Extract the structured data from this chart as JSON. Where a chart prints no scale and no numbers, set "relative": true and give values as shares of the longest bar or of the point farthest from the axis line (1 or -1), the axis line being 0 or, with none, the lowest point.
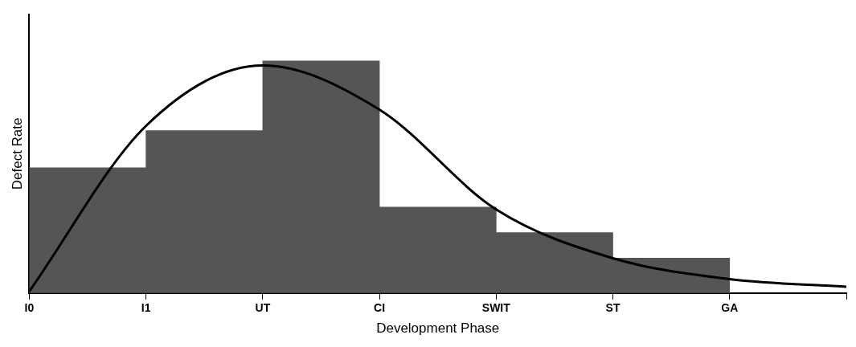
{
  "chart_data": {
    "type": "bar",
    "xlabel": "Development Phase",
    "ylabel": "Defect Rate",
    "relative": true,
    "grid": false,
    "legend": false,
    "categories": [
      "I0",
      "I1",
      "UT",
      "CI",
      "SWIT",
      "ST",
      "GA",
      null
    ],
    "series": [
      {
        "color": "#555555",
        "values": [
          0.54,
          0.7,
          1.0,
          0.37,
          0.26,
          0.15,
          null,
          null
        ]
      },
      {
        "type": "line",
        "color": "#000000",
        "marker": "none",
        "line_style": "solid",
        "values": [
          0.007,
          0.72,
          0.98,
          0.79,
          0.36,
          0.15,
          0.06,
          0.027
        ]
      }
    ]
  }
}
